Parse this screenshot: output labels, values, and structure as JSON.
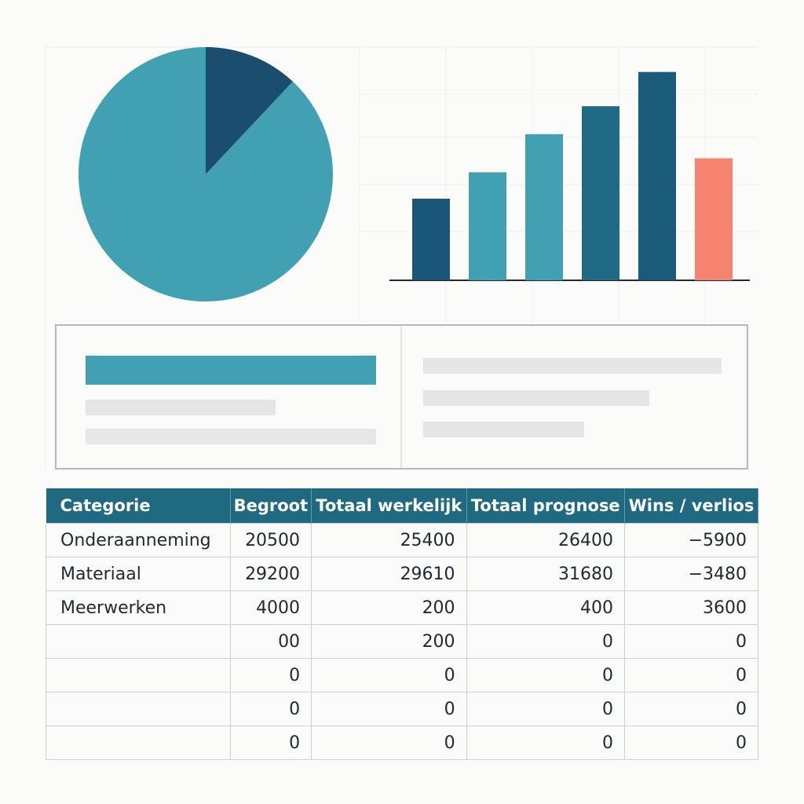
{
  "chart_data": [
    {
      "type": "pie",
      "values": [
        12,
        88
      ],
      "colors": [
        "#1a4d6e",
        "#41a0b2"
      ]
    },
    {
      "type": "bar",
      "values": [
        105,
        139,
        188,
        224,
        268,
        157
      ],
      "ylim": [
        0,
        300
      ],
      "colors": [
        "#1a5678",
        "#41a0b2",
        "#41a0b2",
        "#1f6b85",
        "#1a5a7a",
        "#f4846f"
      ]
    }
  ],
  "table": {
    "header": [
      "Categorie",
      "Begroot",
      "Totaal werkelijk",
      "Totaal prognose",
      "Wins / verlios"
    ],
    "rows": [
      [
        "Onderaanneming",
        "20500",
        "25400",
        "26400",
        "−5900"
      ],
      [
        "Materiaal",
        "29200",
        "29610",
        "31680",
        "−3480"
      ],
      [
        "Meerwerken",
        "4000",
        "200",
        "400",
        "3600"
      ],
      [
        null,
        "00",
        "200",
        "0",
        "0"
      ],
      [
        null,
        "0",
        "0",
        "0",
        "0"
      ],
      [
        null,
        "0",
        "0",
        "0",
        "0"
      ],
      [
        null,
        "0",
        "0",
        "0",
        "0"
      ]
    ]
  }
}
